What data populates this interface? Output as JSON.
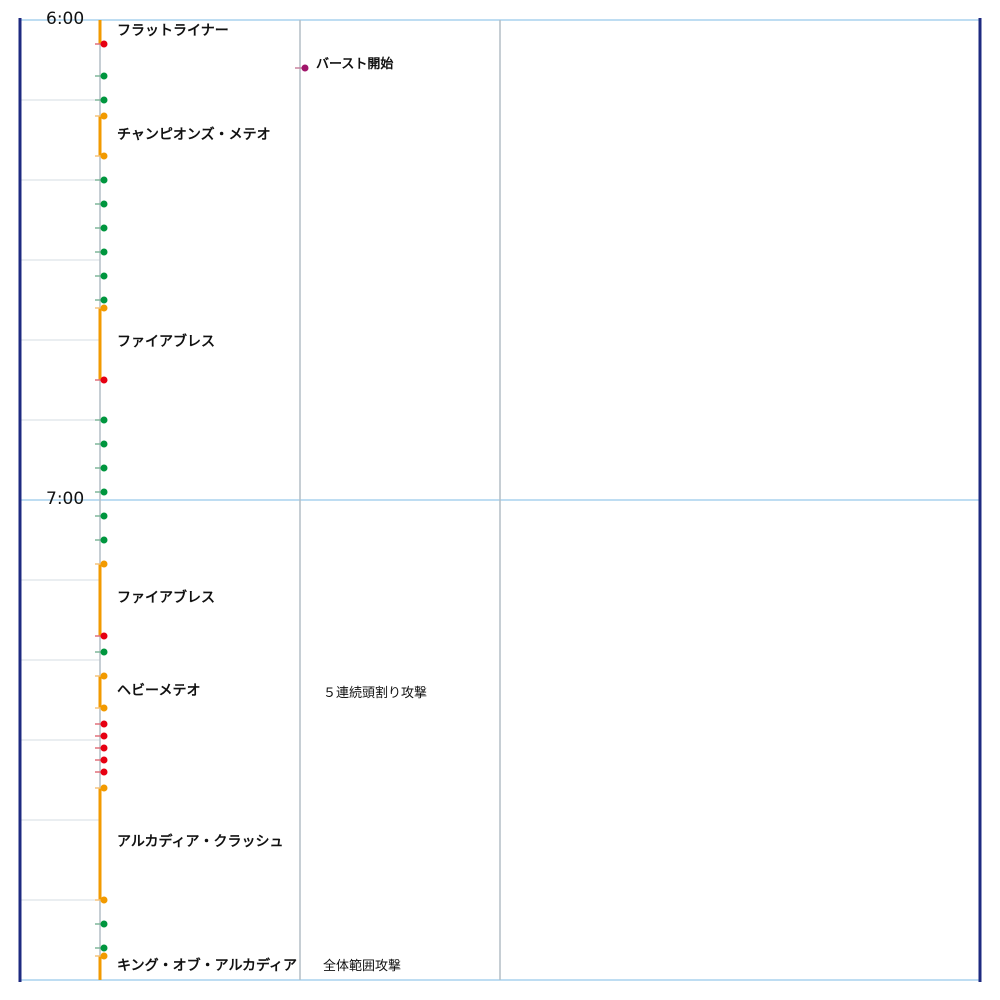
{
  "colors": {
    "border": "#1e2a80",
    "grid_hour": "#a8d2ee",
    "grid_minor": "#d6dde3",
    "column_divider": "#b4bec6",
    "bar": "#f29a00",
    "dot_orange": "#f29a00",
    "dot_green": "#00963e",
    "dot_red": "#e60012",
    "dot_purple": "#a0146a"
  },
  "time_labels": [
    "6:00",
    "7:00"
  ],
  "events": [
    {
      "label": "フラットライナー",
      "bar": "orange",
      "start": "bar",
      "end": "red"
    },
    {
      "label": "チャンピオンズ・メテオ",
      "bar": "orange",
      "start": "orange",
      "end": "orange"
    },
    {
      "label": "ファイアブレス",
      "bar": "orange",
      "start": "orange",
      "end": "red"
    },
    {
      "label": "ファイアブレス",
      "bar": "orange",
      "start": "orange",
      "end": "red"
    },
    {
      "label": "ヘビーメテオ",
      "bar": "orange",
      "start": "orange",
      "end": "orange"
    },
    {
      "label": "アルカディア・クラッシュ",
      "bar": "orange",
      "start": "orange",
      "end": "orange"
    },
    {
      "label": "キング・オブ・アルカディア",
      "bar": "orange",
      "start": "orange",
      "end": "open"
    }
  ],
  "markers": [
    {
      "label": "バースト開始",
      "color": "purple"
    }
  ],
  "notes": [
    {
      "label": "５連続頭割り攻撃"
    },
    {
      "label": "全体範囲攻撃"
    }
  ],
  "dots": [
    {
      "color": "red"
    },
    {
      "color": "green"
    },
    {
      "color": "green"
    },
    {
      "color": "orange"
    },
    {
      "color": "orange"
    },
    {
      "color": "green"
    },
    {
      "color": "green"
    },
    {
      "color": "green"
    },
    {
      "color": "green"
    },
    {
      "color": "green"
    },
    {
      "color": "green"
    },
    {
      "color": "orange"
    },
    {
      "color": "red"
    },
    {
      "color": "green"
    },
    {
      "color": "green"
    },
    {
      "color": "green"
    },
    {
      "color": "green"
    },
    {
      "color": "green"
    },
    {
      "color": "green"
    },
    {
      "color": "orange"
    },
    {
      "color": "red"
    },
    {
      "color": "green"
    },
    {
      "color": "orange"
    },
    {
      "color": "orange"
    },
    {
      "color": "red"
    },
    {
      "color": "red"
    },
    {
      "color": "red"
    },
    {
      "color": "red"
    },
    {
      "color": "red"
    },
    {
      "color": "orange"
    },
    {
      "color": "orange"
    },
    {
      "color": "green"
    },
    {
      "color": "green"
    },
    {
      "color": "orange"
    }
  ]
}
